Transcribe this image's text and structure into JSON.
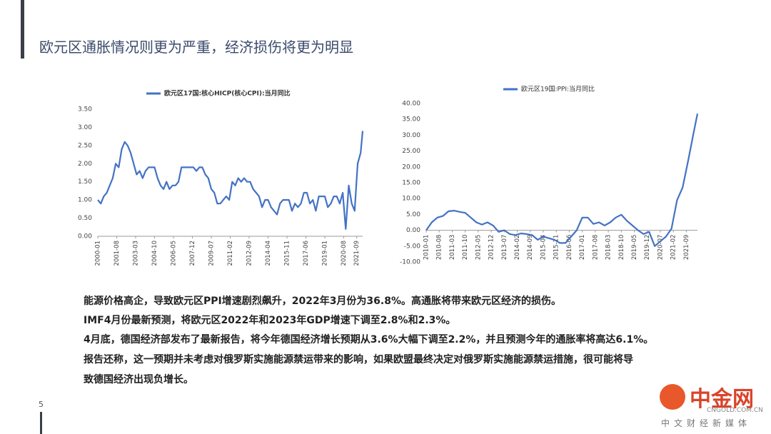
{
  "title": "欧元区通胀情况则更为严重，经济损伤将更为明显",
  "chart_data": [
    {
      "type": "line",
      "x": [
        "2000-01",
        "2000-04",
        "2000-07",
        "2000-10",
        "2001-01",
        "2001-04",
        "2001-07",
        "2001-10",
        "2002-01",
        "2002-04",
        "2002-07",
        "2002-10",
        "2003-01",
        "2003-04",
        "2003-07",
        "2003-10",
        "2004-01",
        "2004-04",
        "2004-07",
        "2004-10",
        "2005-01",
        "2005-04",
        "2005-07",
        "2005-10",
        "2006-01",
        "2006-04",
        "2006-07",
        "2006-10",
        "2007-01",
        "2007-04",
        "2007-07",
        "2007-10",
        "2008-01",
        "2008-04",
        "2008-07",
        "2008-10",
        "2009-01",
        "2009-04",
        "2009-07",
        "2009-10",
        "2010-01",
        "2010-04",
        "2010-07",
        "2010-10",
        "2011-01",
        "2011-04",
        "2011-07",
        "2011-10",
        "2012-01",
        "2012-04",
        "2012-07",
        "2012-10",
        "2013-01",
        "2013-04",
        "2013-07",
        "2013-10",
        "2014-01",
        "2014-04",
        "2014-07",
        "2014-10",
        "2015-01",
        "2015-04",
        "2015-07",
        "2015-10",
        "2016-01",
        "2016-04",
        "2016-07",
        "2016-10",
        "2017-01",
        "2017-04",
        "2017-07",
        "2017-10",
        "2018-01",
        "2018-04",
        "2018-07",
        "2018-10",
        "2019-01",
        "2019-04",
        "2019-07",
        "2019-10",
        "2020-01",
        "2020-04",
        "2020-07",
        "2020-10",
        "2021-01",
        "2021-04",
        "2021-07",
        "2021-10",
        "2022-01",
        "2022-03"
      ],
      "series": [
        {
          "name": "欧元区17国:核心HICP(核心CPI):当月同比",
          "color": "#4472c4",
          "values": [
            1.0,
            0.9,
            1.1,
            1.2,
            1.4,
            1.6,
            2.0,
            1.9,
            2.4,
            2.6,
            2.5,
            2.3,
            2.0,
            1.7,
            1.8,
            1.6,
            1.8,
            1.9,
            1.9,
            1.9,
            1.6,
            1.4,
            1.3,
            1.5,
            1.3,
            1.4,
            1.4,
            1.5,
            1.9,
            1.9,
            1.9,
            1.9,
            1.9,
            1.8,
            1.9,
            1.9,
            1.7,
            1.6,
            1.3,
            1.2,
            0.9,
            0.9,
            1.0,
            1.1,
            1.0,
            1.5,
            1.4,
            1.6,
            1.5,
            1.6,
            1.5,
            1.5,
            1.3,
            1.2,
            1.1,
            0.8,
            1.0,
            1.0,
            0.8,
            0.7,
            0.6,
            0.9,
            1.0,
            1.0,
            1.0,
            0.7,
            0.9,
            0.8,
            0.9,
            1.2,
            1.2,
            0.9,
            1.0,
            0.7,
            1.1,
            1.1,
            1.1,
            0.8,
            0.9,
            1.1,
            1.1,
            0.9,
            1.2,
            0.2,
            1.4,
            0.9,
            0.7,
            2.0,
            2.3,
            2.9
          ]
        }
      ],
      "xticks": [
        "2000-01",
        "2001-08",
        "2003-03",
        "2004-10",
        "2006-05",
        "2007-12",
        "2009-07",
        "2011-02",
        "2012-09",
        "2014-04",
        "2015-11",
        "2017-06",
        "2019-01",
        "2020-08",
        "2021-09"
      ],
      "ylim": [
        0,
        3.5
      ],
      "yticks": [
        {
          "value": 0,
          "label": "0.00"
        },
        {
          "value": 0.5,
          "label": "0.50"
        },
        {
          "value": 1,
          "label": "1.00"
        },
        {
          "value": 1.5,
          "label": "1.50"
        },
        {
          "value": 2,
          "label": "2.00"
        },
        {
          "value": 2.5,
          "label": "2.50"
        },
        {
          "value": 3,
          "label": "3.00"
        },
        {
          "value": 3.5,
          "label": "3.50"
        }
      ],
      "grid": false
    },
    {
      "type": "line",
      "x": [
        "2010-01",
        "2010-04",
        "2010-07",
        "2010-10",
        "2011-01",
        "2011-04",
        "2011-07",
        "2011-10",
        "2012-01",
        "2012-04",
        "2012-07",
        "2012-10",
        "2013-01",
        "2013-04",
        "2013-07",
        "2013-10",
        "2014-01",
        "2014-04",
        "2014-07",
        "2014-10",
        "2015-01",
        "2015-04",
        "2015-07",
        "2015-10",
        "2016-01",
        "2016-04",
        "2016-07",
        "2016-10",
        "2017-01",
        "2017-04",
        "2017-07",
        "2017-10",
        "2018-01",
        "2018-04",
        "2018-07",
        "2018-10",
        "2019-01",
        "2019-04",
        "2019-07",
        "2019-10",
        "2020-01",
        "2020-04",
        "2020-07",
        "2020-10",
        "2021-01",
        "2021-04",
        "2021-07",
        "2021-10",
        "2022-01",
        "2022-03"
      ],
      "series": [
        {
          "name": "欧元区19国:PPI:当月同比",
          "color": "#4472c4",
          "values": [
            0.0,
            2.5,
            4.0,
            4.5,
            6.0,
            6.2,
            5.8,
            5.5,
            4.0,
            2.5,
            1.8,
            2.5,
            1.5,
            -0.5,
            0.0,
            -1.2,
            -1.5,
            -1.0,
            -1.2,
            -1.5,
            -3.0,
            -2.0,
            -2.5,
            -3.0,
            -4.0,
            -4.0,
            -2.0,
            0.0,
            4.0,
            4.0,
            2.0,
            2.5,
            1.5,
            2.5,
            4.0,
            4.9,
            3.0,
            1.5,
            0.0,
            -1.2,
            -0.5,
            -5.0,
            -3.5,
            -2.0,
            0.5,
            9.5,
            13.5,
            22.0,
            31.0,
            36.8
          ]
        }
      ],
      "xticks": [
        "2010-01",
        "2010-08",
        "2011-03",
        "2011-10",
        "2012-05",
        "2012-12",
        "2013-07",
        "2014-02",
        "2014-09",
        "2015-04",
        "2015-11",
        "2016-06",
        "2017-01",
        "2017-08",
        "2018-03",
        "2018-10",
        "2019-05",
        "2019-12",
        "2020-07",
        "2021-02",
        "2021-09"
      ],
      "ylim": [
        -10,
        40
      ],
      "yticks": [
        {
          "value": -10,
          "label": "-10.00"
        },
        {
          "value": -5,
          "label": "-5.00"
        },
        {
          "value": 0,
          "label": "0.00"
        },
        {
          "value": 5,
          "label": "5.00"
        },
        {
          "value": 10,
          "label": "10.00"
        },
        {
          "value": 15,
          "label": "15.00"
        },
        {
          "value": 20,
          "label": "20.00"
        },
        {
          "value": 25,
          "label": "25.00"
        },
        {
          "value": 30,
          "label": "30.00"
        },
        {
          "value": 35,
          "label": "35.00"
        },
        {
          "value": 40,
          "label": "40.00"
        }
      ],
      "grid": false
    }
  ],
  "paragraphs": [
    "能源价格高企，导致欧元区PPI增速剧烈飙升，2022年3月份为36.8%。高通胀将带来欧元区经济的损伤。",
    "IMF4月份最新预测，将欧元区2022年和2023年GDP增速下调至2.8%和2.3%。",
    "4月底，德国经济部发布了最新报告，将今年德国经济增长预期从3.6%大幅下调至2.2%，并且预测今年的通胀率将高达6.1%。",
    "报告还称，这一预期并未考虑对俄罗斯实施能源禁运带来的影响，如果欧盟最终决定对俄罗斯实施能源禁运措施，很可能将导",
    "致德国经济出现负增长。"
  ],
  "page_number": "5",
  "watermark": {
    "name": "中金网",
    "url": "CNGOLD.COM.CN",
    "slogan": "中文财经新媒体"
  }
}
